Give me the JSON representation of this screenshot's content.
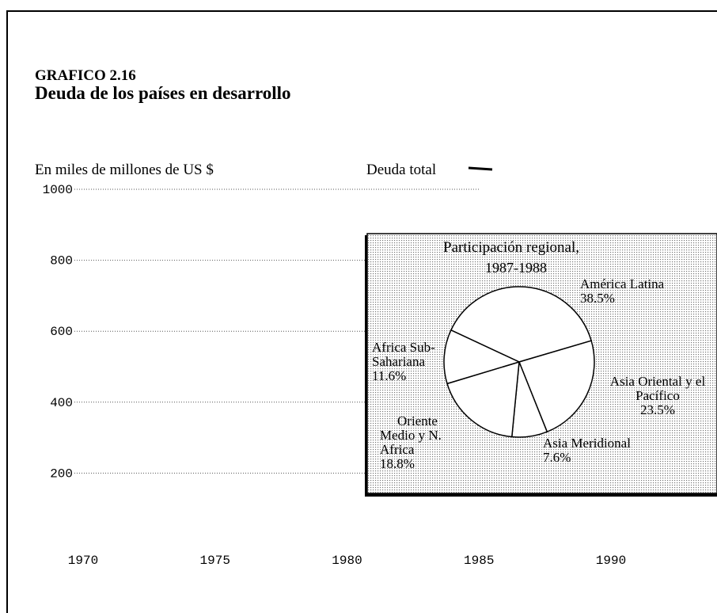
{
  "chart_data": [
    {
      "type": "line",
      "title": "GRAFICO 2.16",
      "subtitle": "Deuda de los países en desarrollo",
      "y_label": "En miles de millones de US $",
      "series": [
        {
          "name": "Deuda total",
          "color": "#000000"
        }
      ],
      "xlim": [
        1970,
        1990
      ],
      "xticks": [
        1970,
        1975,
        1980,
        1985,
        1990
      ],
      "ylim": [
        0,
        1000
      ],
      "yticks": [
        200,
        400,
        600,
        800,
        1000
      ],
      "grid": true
    },
    {
      "type": "pie",
      "title": "Participación regional,",
      "subtitle": "1987-1988",
      "categories": [
        "América Latina",
        "Asia Oriental y el Pacífico",
        "Asia Meridional",
        "Oriente Medio y N. Africa",
        "Africa Sub-Sahariana"
      ],
      "values": [
        38.5,
        23.5,
        7.6,
        18.8,
        11.6
      ],
      "value_labels": [
        "38.5%",
        "23.5%",
        "7.6%",
        "18.8%",
        "11.6%"
      ],
      "colors": [
        "#ffffff",
        "#ffffff",
        "#ffffff",
        "#ffffff",
        "#ffffff"
      ]
    }
  ]
}
